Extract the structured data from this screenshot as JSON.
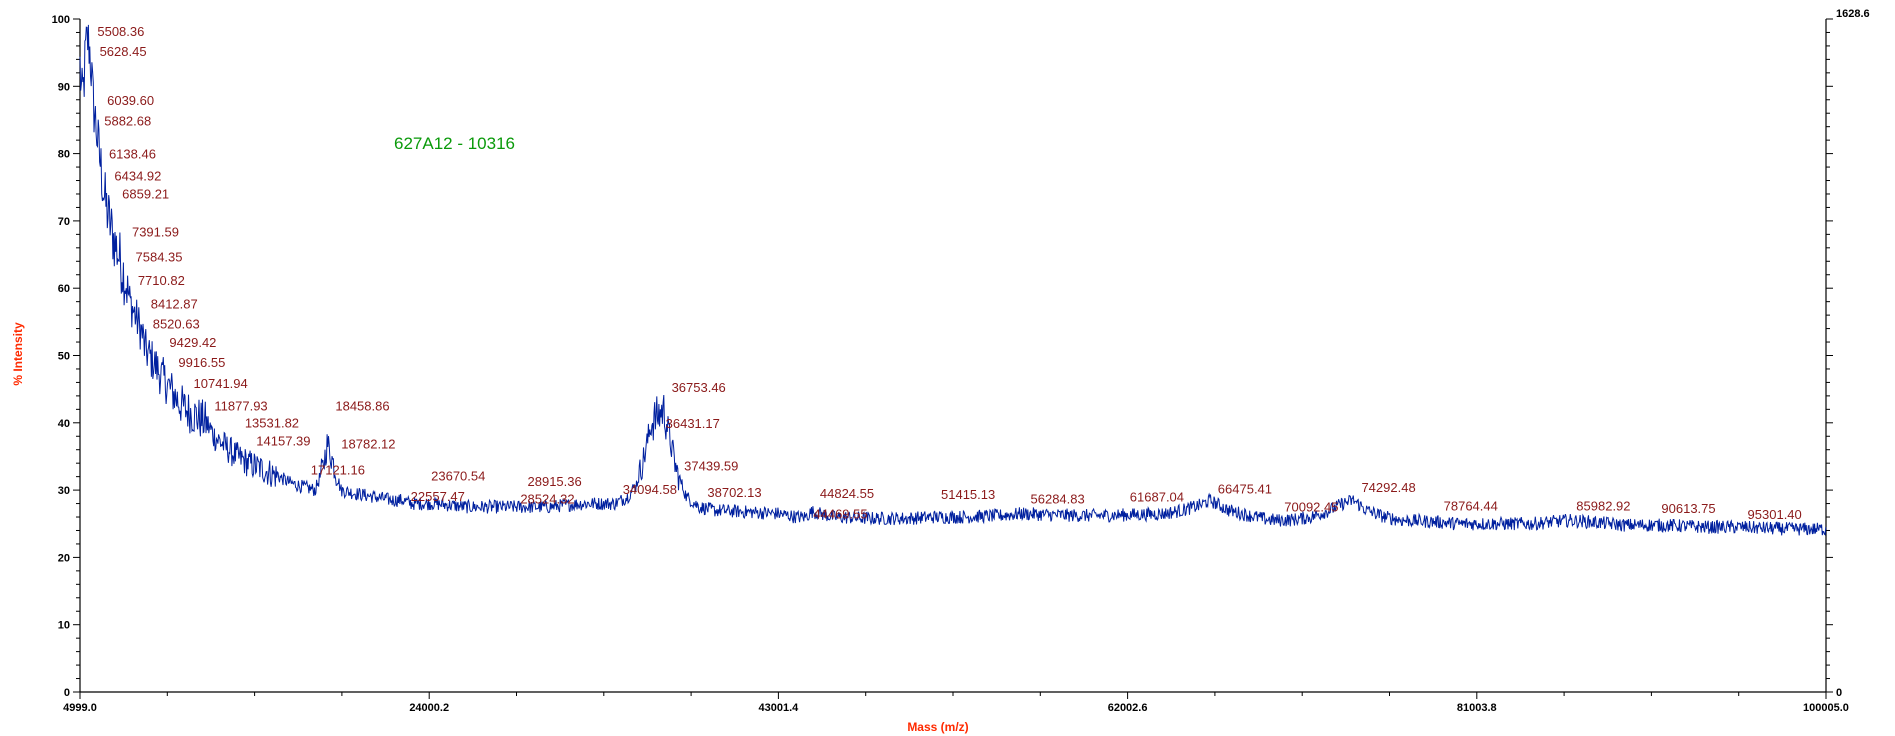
{
  "colors": {
    "trace": "#00209f",
    "peak_label": "#8b1a1a",
    "axis_title": "#ff2a00",
    "sample_label": "#0a9a0a",
    "axis": "#000000"
  },
  "chart_data": {
    "type": "line",
    "title": "",
    "sample_label": "627A12 - 10316",
    "xlabel": "Mass (m/z)",
    "ylabel": "% Intensity",
    "xlim": [
      4999.0,
      100005.0
    ],
    "ylim": [
      0,
      100
    ],
    "y2lim": [
      0,
      1628.6
    ],
    "x_ticks": [
      "4999.0",
      "24000.2",
      "43001.4",
      "62002.6",
      "81003.8",
      "100005.0"
    ],
    "x_tick_values": [
      4999.0,
      24000.2,
      43001.4,
      62002.6,
      81003.8,
      100005.0
    ],
    "y_ticks": [
      "0",
      "10",
      "20",
      "30",
      "40",
      "50",
      "60",
      "70",
      "80",
      "90",
      "100"
    ],
    "y_tick_values": [
      0,
      10,
      20,
      30,
      40,
      50,
      60,
      70,
      80,
      90,
      100
    ],
    "y2_ticks": [
      "0",
      "1628.6"
    ],
    "y2_tick_values": [
      0,
      1628.6
    ],
    "grid": false,
    "series": [
      {
        "x": [
          4999,
          5100,
          5200,
          5300,
          5400,
          5508,
          5628,
          5700,
          5882,
          6040,
          6138,
          6300,
          6435,
          6600,
          6859,
          7100,
          7392,
          7584,
          7711,
          8000,
          8413,
          8521,
          9000,
          9429,
          9917,
          10400,
          10742,
          11300,
          11878,
          12300,
          13100,
          13532,
          14157,
          15000,
          15800,
          16500,
          17121,
          17800,
          18200,
          18459,
          18782,
          19200,
          20000,
          21000,
          22000,
          22557,
          23000,
          23671,
          24200,
          25000,
          26000,
          26525,
          27000,
          28000,
          28915,
          29500,
          30500,
          31500,
          32500,
          33500,
          34095,
          34800,
          35300,
          35700,
          36100,
          36431,
          36753,
          37000,
          37440,
          38000,
          38702,
          39500,
          41000,
          43000,
          44000,
          44470,
          44825,
          46000,
          48000,
          50000,
          51415,
          53000,
          55000,
          56285,
          58000,
          60000,
          61687,
          63000,
          64000,
          65000,
          66000,
          66475,
          67500,
          68500,
          69500,
          70092,
          71000,
          72000,
          73000,
          73700,
          74292,
          75000,
          76000,
          77000,
          78764,
          80000,
          82000,
          84000,
          85983,
          87500,
          89000,
          90614,
          92000,
          93500,
          95301,
          97000,
          98500,
          100005
        ],
        "y": [
          93,
          88,
          90,
          95,
          97,
          96,
          92,
          88,
          84,
          80,
          78,
          74,
          72,
          70,
          67,
          65,
          62,
          60,
          58,
          56,
          53,
          51,
          49,
          47,
          45,
          43,
          42,
          41,
          40,
          38,
          36,
          35,
          34,
          33,
          32,
          31,
          30.5,
          30,
          33,
          37,
          34,
          30,
          29.5,
          29,
          28.5,
          28.5,
          28,
          28,
          28,
          27.8,
          27.5,
          27.5,
          27.5,
          27.5,
          27.5,
          27.5,
          27.5,
          27.8,
          28,
          28,
          28,
          29,
          31,
          35,
          40,
          41,
          42,
          39,
          33,
          29,
          27.5,
          27,
          26.8,
          26.5,
          26,
          26,
          26.8,
          26,
          25.8,
          25.8,
          26,
          26,
          26.2,
          26.5,
          26.3,
          26.2,
          26.3,
          26.4,
          26.5,
          27,
          27.8,
          28.5,
          27,
          26.3,
          25.7,
          25.5,
          25.6,
          26,
          27,
          28,
          28.5,
          27,
          26,
          25.5,
          25.3,
          25,
          25,
          25,
          25.5,
          25.2,
          24.8,
          24.8,
          24.7,
          24.5,
          24.5,
          24.3,
          24.2,
          24.2
        ]
      }
    ],
    "peak_labels": [
      {
        "text": "5508.36",
        "x": 5508.36,
        "y": 97.5
      },
      {
        "text": "5628.45",
        "x": 5628.45,
        "y": 94.5
      },
      {
        "text": "6039.60",
        "x": 6039.6,
        "y": 87.2
      },
      {
        "text": "5882.68",
        "x": 5882.68,
        "y": 84.2
      },
      {
        "text": "6138.46",
        "x": 6138.46,
        "y": 79.3
      },
      {
        "text": "6434.92",
        "x": 6434.92,
        "y": 76.0
      },
      {
        "text": "6859.21",
        "x": 6859.21,
        "y": 73.3
      },
      {
        "text": "7391.59",
        "x": 7391.59,
        "y": 67.7
      },
      {
        "text": "7584.35",
        "x": 7584.35,
        "y": 64.0
      },
      {
        "text": "7710.82",
        "x": 7710.82,
        "y": 60.5
      },
      {
        "text": "8412.87",
        "x": 8412.87,
        "y": 57.0
      },
      {
        "text": "8520.63",
        "x": 8520.63,
        "y": 54.0
      },
      {
        "text": "9429.42",
        "x": 9429.42,
        "y": 51.3
      },
      {
        "text": "9916.55",
        "x": 9916.55,
        "y": 48.3
      },
      {
        "text": "10741.94",
        "x": 10741.94,
        "y": 45.2
      },
      {
        "text": "11877.93",
        "x": 11877.93,
        "y": 41.8
      },
      {
        "text": "13531.82",
        "x": 13531.82,
        "y": 39.3
      },
      {
        "text": "14157.39",
        "x": 14157.39,
        "y": 36.6
      },
      {
        "text": "17121.16",
        "x": 17121.16,
        "y": 32.3
      },
      {
        "text": "18458.86",
        "x": 18458.86,
        "y": 41.8
      },
      {
        "text": "18782.12",
        "x": 18782.12,
        "y": 36.2
      },
      {
        "text": "22557.47",
        "x": 22557.47,
        "y": 28.4
      },
      {
        "text": "23670.54",
        "x": 23670.54,
        "y": 31.4
      },
      {
        "text": "28524.32",
        "x": 28524.32,
        "y": 28.0
      },
      {
        "text": "28915.36",
        "x": 28915.36,
        "y": 30.6
      },
      {
        "text": "34094.58",
        "x": 34094.58,
        "y": 29.4
      },
      {
        "text": "36753.46",
        "x": 36753.46,
        "y": 44.6
      },
      {
        "text": "36431.17",
        "x": 36431.17,
        "y": 39.2
      },
      {
        "text": "37439.59",
        "x": 37439.59,
        "y": 32.9
      },
      {
        "text": "38702.13",
        "x": 38702.13,
        "y": 29.0
      },
      {
        "text": "44824.55",
        "x": 44824.55,
        "y": 28.8
      },
      {
        "text": "44469.55",
        "x": 44469.55,
        "y": 25.8
      },
      {
        "text": "51415.13",
        "x": 51415.13,
        "y": 28.7
      },
      {
        "text": "56284.83",
        "x": 56284.83,
        "y": 28.0
      },
      {
        "text": "61687.04",
        "x": 61687.04,
        "y": 28.3
      },
      {
        "text": "66475.41",
        "x": 66475.41,
        "y": 29.5
      },
      {
        "text": "70092.45",
        "x": 70092.45,
        "y": 26.8
      },
      {
        "text": "74292.48",
        "x": 74292.48,
        "y": 29.7
      },
      {
        "text": "78764.44",
        "x": 78764.44,
        "y": 27.0
      },
      {
        "text": "85982.92",
        "x": 85982.92,
        "y": 27.0
      },
      {
        "text": "90613.75",
        "x": 90613.75,
        "y": 26.6
      },
      {
        "text": "95301.40",
        "x": 95301.4,
        "y": 25.7
      }
    ]
  }
}
